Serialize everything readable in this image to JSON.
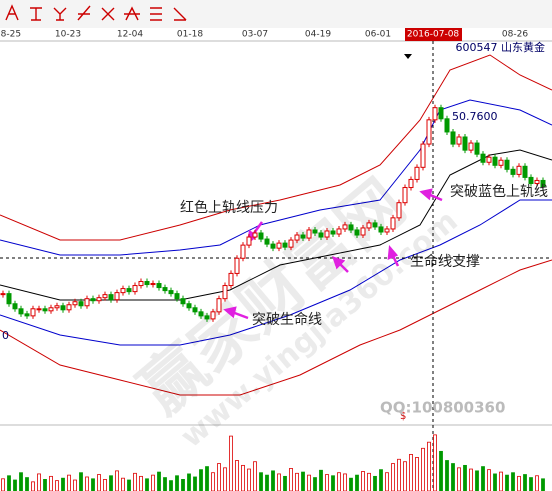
{
  "chart_data": {
    "type": "candlestick",
    "title": "600547 山东黄金",
    "date_labels": [
      "08-25",
      "10-23",
      "12-04",
      "01-18",
      "03-07",
      "04-19",
      "06-01",
      "08-26"
    ],
    "cursor_date": "2016-07-08",
    "cursor_color": "#cc0000",
    "ylim": [
      20,
      58
    ],
    "color_up": "#dd0000",
    "color_down": "#009900",
    "values": [
      33,
      32,
      31.5,
      31,
      30.8,
      31.5,
      31.5,
      31.3,
      31.6,
      31.8,
      31.4,
      31.9,
      32.2,
      31.8,
      32.5,
      32.3,
      32.6,
      32.9,
      32.4,
      33.1,
      33.5,
      33.2,
      33.8,
      34.2,
      33.9,
      34.0,
      33.6,
      33.3,
      33.0,
      32.5,
      32.0,
      31.6,
      31.2,
      30.8,
      30.5,
      31.2,
      32.5,
      33.8,
      35.0,
      36.5,
      37.8,
      38.6,
      39.0,
      38.4,
      37.9,
      37.5,
      38.0,
      37.6,
      38.3,
      38.8,
      38.5,
      39.3,
      39.0,
      38.6,
      39.2,
      38.9,
      39.4,
      39.8,
      39.3,
      38.8,
      39.5,
      40.0,
      39.6,
      39.1,
      39.4,
      40.5,
      42.0,
      43.5,
      44.3,
      45.5,
      47.8,
      50.2,
      51.4,
      50.3,
      49.0,
      47.8,
      48.5,
      47.2,
      47.9,
      46.8,
      46.0,
      46.5,
      45.7,
      46.2,
      45.3,
      44.8,
      45.6,
      44.5,
      43.9,
      44.2,
      43.6
    ],
    "volume": {
      "ylim": [
        0,
        100
      ],
      "values": [
        20,
        25,
        18,
        30,
        22,
        15,
        28,
        19,
        24,
        17,
        21,
        26,
        18,
        30,
        23,
        20,
        27,
        19,
        25,
        33,
        21,
        18,
        29,
        24,
        20,
        26,
        31,
        22,
        17,
        25,
        19,
        28,
        23,
        35,
        40,
        30,
        45,
        38,
        90,
        50,
        42,
        36,
        48,
        30,
        26,
        33,
        28,
        24,
        37,
        29,
        31,
        26,
        22,
        34,
        27,
        25,
        30,
        28,
        21,
        26,
        32,
        29,
        24,
        35,
        30,
        45,
        52,
        48,
        60,
        55,
        70,
        80,
        92,
        65,
        50,
        45,
        38,
        42,
        36,
        33,
        40,
        35,
        28,
        31,
        26,
        30,
        24,
        27,
        22,
        25,
        20
      ]
    },
    "price_label": "50.7600",
    "left_label": "0",
    "marker": "$",
    "annotations": [
      "红色上轨线压力",
      "突破生命线",
      "生命线支撑",
      "突破蓝色上轨线"
    ],
    "watermark": "赢家财富网",
    "watermark_url": "www.yingjia360.com",
    "contact": "QQ:100800360"
  }
}
